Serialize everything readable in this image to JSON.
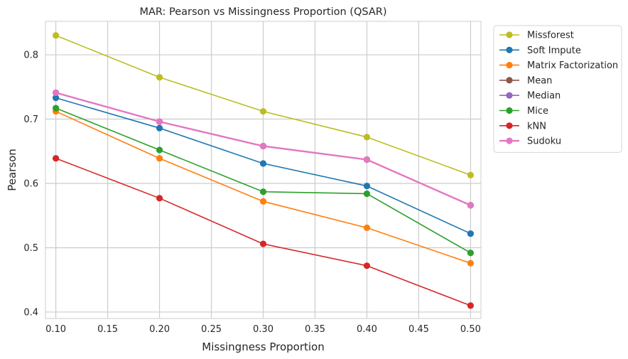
{
  "chart_data": {
    "type": "line",
    "title": "MAR: Pearson vs Missingness Proportion (QSAR)",
    "xlabel": "Missingness Proportion",
    "ylabel": "Pearson",
    "x": [
      0.1,
      0.2,
      0.3,
      0.4,
      0.5
    ],
    "xlim": [
      0.09,
      0.51
    ],
    "ylim": [
      0.39,
      0.852
    ],
    "xticks": [
      "0.10",
      "0.15",
      "0.20",
      "0.25",
      "0.30",
      "0.35",
      "0.40",
      "0.45",
      "0.50"
    ],
    "yticks": [
      "0.4",
      "0.5",
      "0.6",
      "0.7",
      "0.8"
    ],
    "grid": true,
    "legend_position": "outside-upper-right",
    "series": [
      {
        "name": "Missforest",
        "color": "#bcbd22",
        "values": [
          0.83,
          0.765,
          0.712,
          0.672,
          0.613
        ]
      },
      {
        "name": "Soft Impute",
        "color": "#1f77b4",
        "values": [
          0.733,
          0.686,
          0.631,
          0.596,
          0.522
        ]
      },
      {
        "name": "Matrix Factorization",
        "color": "#ff7f0e",
        "values": [
          0.712,
          0.639,
          0.572,
          0.531,
          0.476
        ]
      },
      {
        "name": "Mean",
        "color": "#8c564b",
        "values": [
          0.741,
          0.696,
          0.658,
          0.637,
          0.566
        ]
      },
      {
        "name": "Median",
        "color": "#9467bd",
        "values": [
          0.741,
          0.696,
          0.658,
          0.637,
          0.566
        ]
      },
      {
        "name": "Mice",
        "color": "#2ca02c",
        "values": [
          0.717,
          0.652,
          0.587,
          0.584,
          0.492
        ]
      },
      {
        "name": "kNN",
        "color": "#d62728",
        "values": [
          0.639,
          0.577,
          0.506,
          0.472,
          0.41
        ]
      },
      {
        "name": "Sudoku",
        "color": "#e377c2",
        "values": [
          0.741,
          0.696,
          0.658,
          0.637,
          0.566
        ]
      }
    ]
  }
}
